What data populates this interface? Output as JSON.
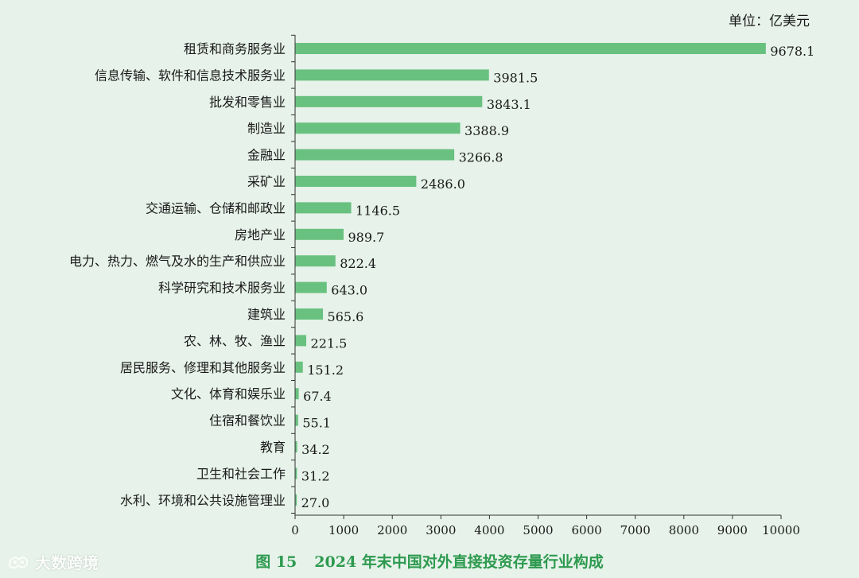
{
  "unit_label": "单位：亿美元",
  "figure_caption": {
    "number": "图 15",
    "title": "2024 年末中国对外直接投资存量行业构成"
  },
  "watermark": {
    "text": "大数跨境",
    "logo_icon": "dashu-logo-icon"
  },
  "colors": {
    "bar": "#69c17f",
    "background": "#e6f2ea",
    "caption": "#2e9a4f",
    "axis": "#333333"
  },
  "chart_data": {
    "type": "bar",
    "orientation": "horizontal",
    "categories": [
      "租赁和商务服务业",
      "信息传输、软件和信息技术服务业",
      "批发和零售业",
      "制造业",
      "金融业",
      "采矿业",
      "交通运输、仓储和邮政业",
      "房地产业",
      "电力、热力、燃气及水的生产和供应业",
      "科学研究和技术服务业",
      "建筑业",
      "农、林、牧、渔业",
      "居民服务、修理和其他服务业",
      "文化、体育和娱乐业",
      "住宿和餐饮业",
      "教育",
      "卫生和社会工作",
      "水利、环境和公共设施管理业"
    ],
    "values": [
      9678.1,
      3981.5,
      3843.1,
      3388.9,
      3266.8,
      2486.0,
      1146.5,
      989.7,
      822.4,
      643.0,
      565.6,
      221.5,
      151.2,
      67.4,
      55.1,
      34.2,
      31.2,
      27.0
    ],
    "value_labels": [
      "9678.1",
      "3981.5",
      "3843.1",
      "3388.9",
      "3266.8",
      "2486.0",
      "1146.5",
      "989.7",
      "822.4",
      "643.0",
      "565.6",
      "221.5",
      "151.2",
      "67.4",
      "55.1",
      "34.2",
      "31.2",
      "27.0"
    ],
    "xlim": [
      0,
      10000
    ],
    "x_ticks": [
      "0",
      "1000",
      "2000",
      "3000",
      "4000",
      "5000",
      "6000",
      "7000",
      "8000",
      "9000",
      "10000"
    ],
    "x_tick_values": [
      0,
      1000,
      2000,
      3000,
      4000,
      5000,
      6000,
      7000,
      8000,
      9000,
      10000
    ],
    "grid": false,
    "legend": "none"
  }
}
